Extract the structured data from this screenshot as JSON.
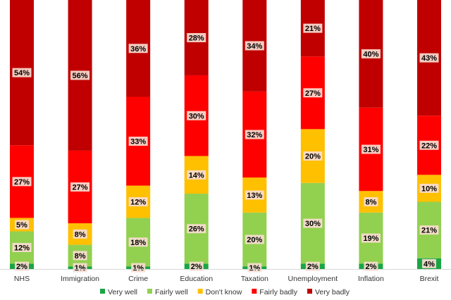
{
  "chart_data": {
    "type": "bar",
    "stacked": true,
    "orientation": "vertical",
    "percent_format": "{v}%",
    "categories": [
      "NHS",
      "Immigration",
      "Crime",
      "Education",
      "Taxation",
      "Unemployment",
      "Inflation",
      "Brexit"
    ],
    "series": [
      {
        "name": "Very well",
        "color": "#1aa543",
        "values": [
          2,
          1,
          1,
          2,
          1,
          2,
          2,
          4
        ]
      },
      {
        "name": "Fairly well",
        "color": "#92d050",
        "values": [
          12,
          8,
          18,
          26,
          20,
          30,
          19,
          21
        ]
      },
      {
        "name": "Don't know",
        "color": "#ffc000",
        "values": [
          5,
          8,
          12,
          14,
          13,
          20,
          8,
          10
        ]
      },
      {
        "name": "Fairly badly",
        "color": "#ff0000",
        "values": [
          27,
          27,
          33,
          30,
          32,
          27,
          31,
          22
        ]
      },
      {
        "name": "Very badly",
        "color": "#c00000",
        "values": [
          54,
          56,
          36,
          28,
          34,
          21,
          40,
          43
        ]
      }
    ],
    "ylim": [
      0,
      100
    ],
    "grid": false,
    "legend_position": "bottom",
    "title": "",
    "xlabel": "",
    "ylabel": ""
  }
}
